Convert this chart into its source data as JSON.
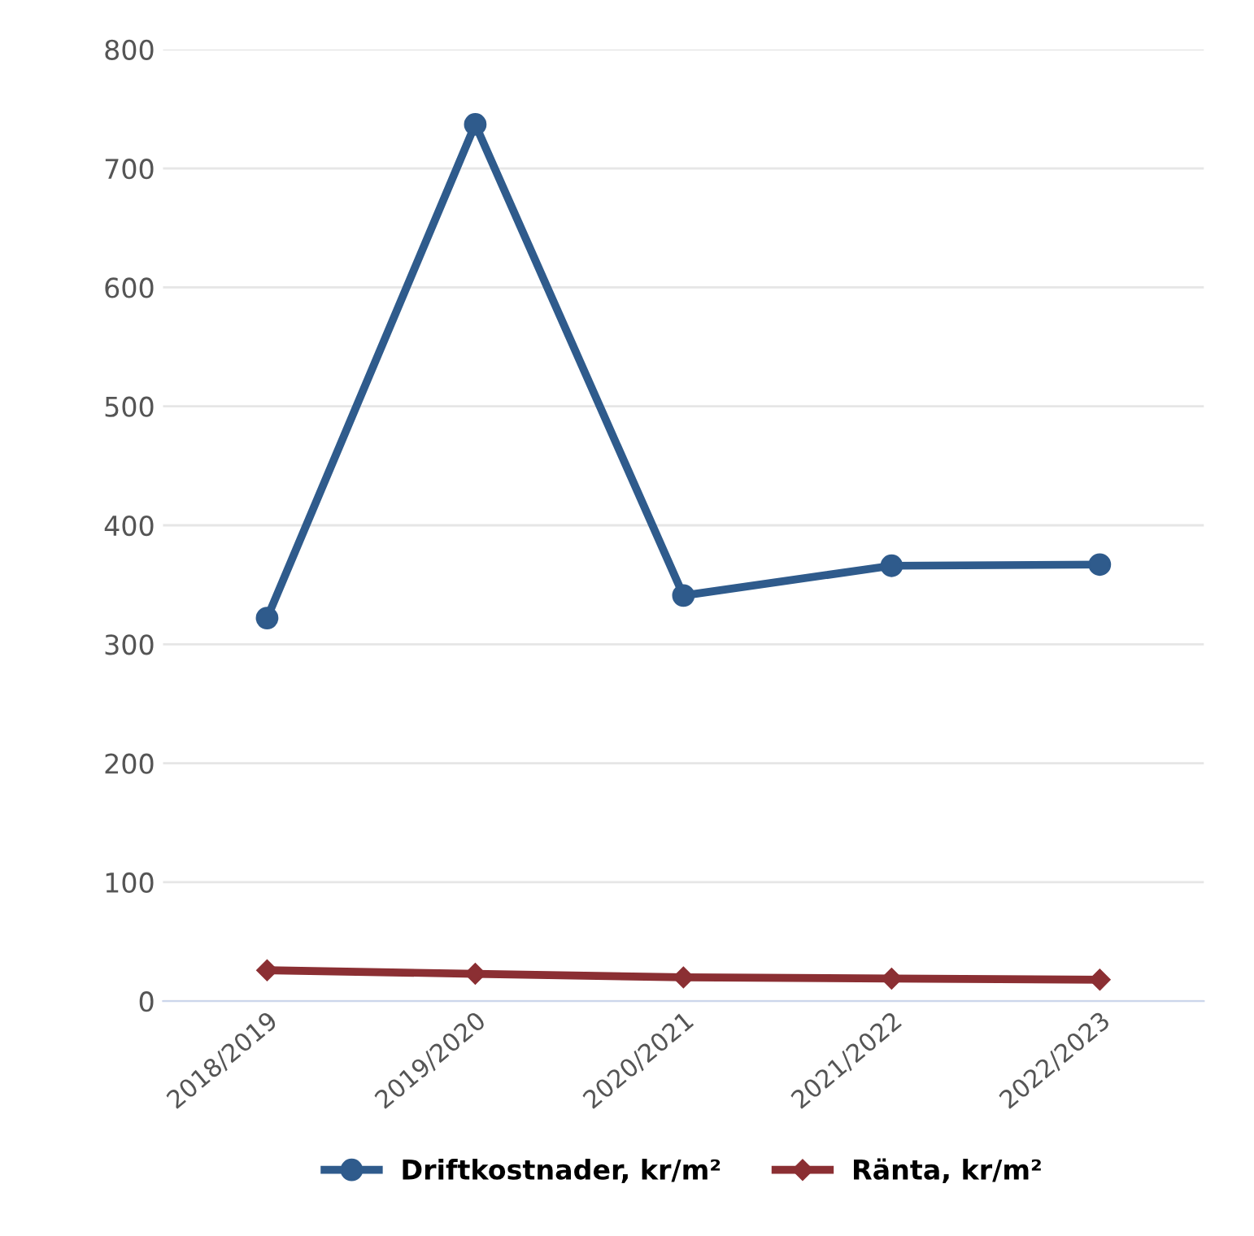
{
  "chart_data": {
    "type": "line",
    "categories": [
      "2018/2019",
      "2019/2020",
      "2020/2021",
      "2021/2022",
      "2022/2023"
    ],
    "series": [
      {
        "name": "Driftkostnader, kr/m²",
        "color": "#2f5b8c",
        "marker": "circle",
        "values": [
          322,
          737,
          341,
          366,
          367
        ]
      },
      {
        "name": "Ränta, kr/m²",
        "color": "#8b2f33",
        "marker": "diamond",
        "values": [
          26,
          23,
          20,
          19,
          18
        ]
      }
    ],
    "ylim": [
      0,
      800
    ],
    "yticks": [
      0,
      100,
      200,
      300,
      400,
      500,
      600,
      700,
      800
    ],
    "grid": "y",
    "legend": "bottom"
  }
}
